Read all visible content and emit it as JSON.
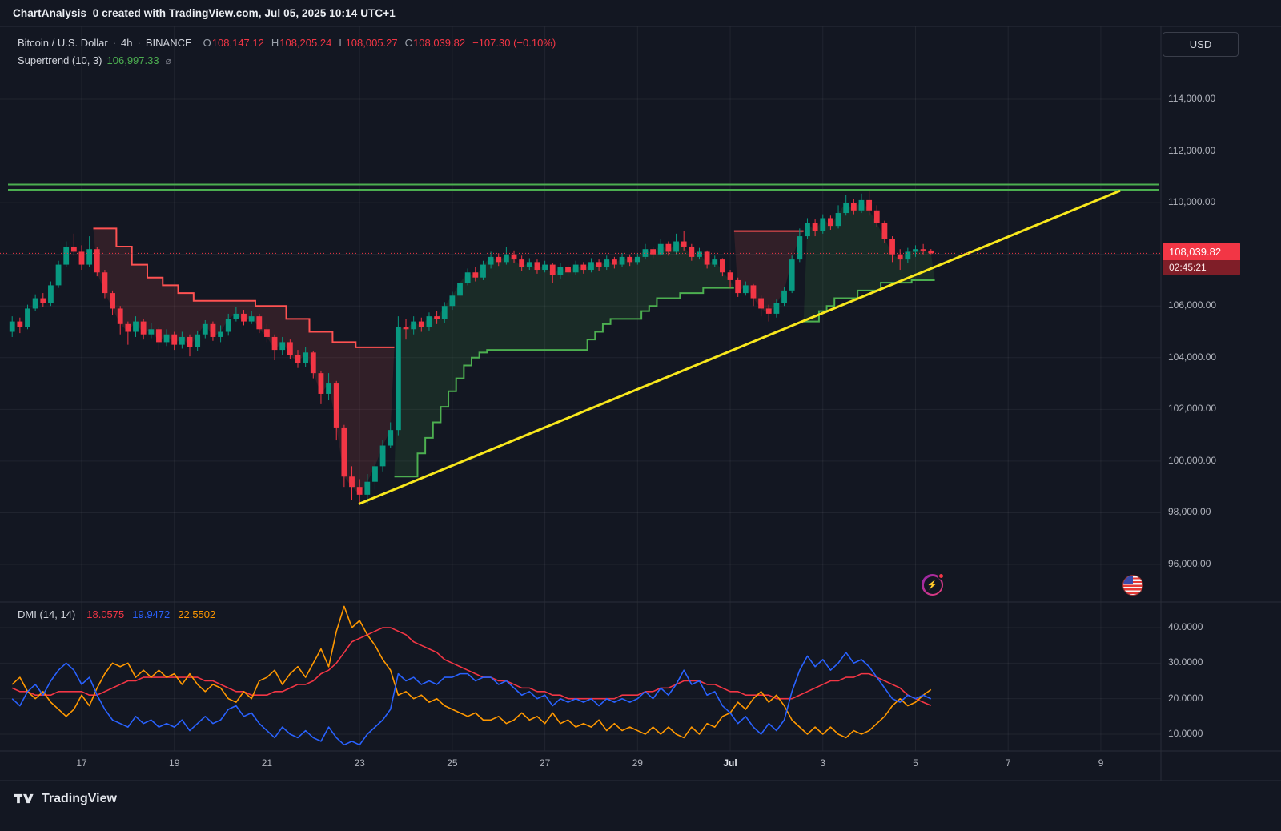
{
  "header": {
    "title": "ChartAnalysis_0 created with TradingView.com, Jul 05, 2025 10:14 UTC+1"
  },
  "legend": {
    "symbol": "Bitcoin / U.S. Dollar",
    "sep": "·",
    "interval": "4h",
    "exchange": "BINANCE",
    "ohlc": {
      "o_label": "O",
      "o": "108,147.12",
      "h_label": "H",
      "h": "108,205.24",
      "l_label": "L",
      "l": "108,005.27",
      "c_label": "C",
      "c": "108,039.82",
      "change": "−107.30 (−0.10%)"
    }
  },
  "supertrend_legend": {
    "title": "Supertrend (10, 3)",
    "value": "106,997.33",
    "icon": "⌀"
  },
  "dmi_legend": {
    "title": "DMI (14, 14)",
    "adx": "18.0575",
    "plus_di": "19.9472",
    "minus_di": "22.5502"
  },
  "price_axis": {
    "currency": "USD",
    "labels": [
      {
        "v": 114000,
        "label": "114,000.00"
      },
      {
        "v": 112000,
        "label": "112,000.00"
      },
      {
        "v": 110000,
        "label": "110,000.00"
      },
      {
        "v": 108000,
        "label": "108,000.00"
      },
      {
        "v": 106000,
        "label": "106,000.00"
      },
      {
        "v": 104000,
        "label": "104,000.00"
      },
      {
        "v": 102000,
        "label": "102,000.00"
      },
      {
        "v": 100000,
        "label": "100,000.00"
      },
      {
        "v": 98000,
        "label": "98,000.00"
      },
      {
        "v": 96000,
        "label": "96,000.00"
      }
    ]
  },
  "dmi_axis": [
    {
      "v": 40,
      "label": "40.0000"
    },
    {
      "v": 30,
      "label": "30.0000"
    },
    {
      "v": 20,
      "label": "20.0000"
    },
    {
      "v": 10,
      "label": "10.0000"
    }
  ],
  "time_axis": [
    {
      "d": 17,
      "label": "17"
    },
    {
      "d": 19,
      "label": "19"
    },
    {
      "d": 21,
      "label": "21"
    },
    {
      "d": 23,
      "label": "23"
    },
    {
      "d": 25,
      "label": "25"
    },
    {
      "d": 27,
      "label": "27"
    },
    {
      "d": 29,
      "label": "29"
    },
    {
      "d": 31,
      "label": "Jul",
      "major": true
    },
    {
      "d": 33,
      "label": "3"
    },
    {
      "d": 35,
      "label": "5"
    },
    {
      "d": 37,
      "label": "7"
    },
    {
      "d": 39,
      "label": "9"
    }
  ],
  "price_badge": {
    "price": "108,039.82",
    "countdown": "02:45:21"
  },
  "icons": {
    "lightning_glyph": "⚡"
  },
  "footer": {
    "brand": "TradingView"
  },
  "chart_data": {
    "type": "candlestick",
    "title": "Bitcoin / U.S. Dollar 4h BINANCE with Supertrend (10,3) and DMI (14,14)",
    "interval": "4h",
    "start_day": 15.5,
    "candles_per_day": 6,
    "first_open": 105000,
    "price_axis_range": [
      96000,
      114000
    ],
    "last_price": 108039.82,
    "resistance_levels": [
      110700,
      110500
    ],
    "trendline": {
      "from_day": 23.0,
      "from_price": 98350,
      "to_day": 39.4,
      "to_price": 110450
    },
    "candles": [
      [
        105600,
        104800,
        105400
      ],
      [
        105550,
        104950,
        105200
      ],
      [
        106050,
        105100,
        105900
      ],
      [
        106450,
        105800,
        106300
      ],
      [
        106500,
        105950,
        106100
      ],
      [
        106950,
        106000,
        106800
      ],
      [
        107750,
        106700,
        107600
      ],
      [
        108500,
        107500,
        108300
      ],
      [
        108800,
        107950,
        108100
      ],
      [
        108350,
        107400,
        107600
      ],
      [
        108700,
        107500,
        108200
      ],
      [
        108300,
        107150,
        107300
      ],
      [
        107400,
        106300,
        106500
      ],
      [
        106600,
        105650,
        105900
      ],
      [
        106000,
        104900,
        105300
      ],
      [
        105400,
        104500,
        105000
      ],
      [
        105600,
        104800,
        105400
      ],
      [
        105500,
        104700,
        104900
      ],
      [
        105350,
        104750,
        105100
      ],
      [
        105200,
        104300,
        104600
      ],
      [
        105100,
        104450,
        104900
      ],
      [
        105000,
        104300,
        104500
      ],
      [
        105000,
        104350,
        104800
      ],
      [
        104900,
        104050,
        104400
      ],
      [
        105050,
        104250,
        104900
      ],
      [
        105450,
        104750,
        105300
      ],
      [
        105400,
        104650,
        104800
      ],
      [
        105250,
        104600,
        105000
      ],
      [
        105700,
        104850,
        105500
      ],
      [
        105950,
        105400,
        105700
      ],
      [
        105850,
        105250,
        105400
      ],
      [
        105800,
        105300,
        105600
      ],
      [
        105700,
        104950,
        105100
      ],
      [
        105300,
        104600,
        104800
      ],
      [
        104900,
        103900,
        104300
      ],
      [
        104800,
        104100,
        104600
      ],
      [
        104700,
        103950,
        104100
      ],
      [
        104300,
        103600,
        103800
      ],
      [
        104400,
        103650,
        104200
      ],
      [
        104250,
        103200,
        103400
      ],
      [
        103500,
        102200,
        102600
      ],
      [
        103400,
        102350,
        103000
      ],
      [
        103100,
        100800,
        101300
      ],
      [
        101400,
        99000,
        99400
      ],
      [
        99800,
        98500,
        99000
      ],
      [
        99300,
        98300,
        98700
      ],
      [
        99500,
        98350,
        99200
      ],
      [
        100000,
        98900,
        99800
      ],
      [
        100800,
        99600,
        100600
      ],
      [
        101500,
        100500,
        101200
      ],
      [
        105600,
        101000,
        105200
      ],
      [
        105500,
        104700,
        105100
      ],
      [
        105600,
        104900,
        105400
      ],
      [
        105550,
        105000,
        105200
      ],
      [
        105750,
        105050,
        105600
      ],
      [
        105800,
        105300,
        105500
      ],
      [
        106150,
        105350,
        106000
      ],
      [
        106550,
        105850,
        106400
      ],
      [
        107050,
        106300,
        106900
      ],
      [
        107450,
        106800,
        107300
      ],
      [
        107500,
        106950,
        107100
      ],
      [
        107750,
        107000,
        107600
      ],
      [
        108100,
        107450,
        107900
      ],
      [
        108050,
        107550,
        107700
      ],
      [
        108300,
        107600,
        108000
      ],
      [
        108150,
        107650,
        107800
      ],
      [
        107950,
        107350,
        107500
      ],
      [
        107850,
        107400,
        107700
      ],
      [
        107800,
        107250,
        107400
      ],
      [
        107750,
        107300,
        107600
      ],
      [
        107650,
        106900,
        107200
      ],
      [
        107650,
        107050,
        107500
      ],
      [
        107600,
        107150,
        107300
      ],
      [
        107750,
        107200,
        107600
      ],
      [
        107700,
        107250,
        107400
      ],
      [
        107850,
        107300,
        107700
      ],
      [
        107800,
        107350,
        107500
      ],
      [
        107950,
        107400,
        107800
      ],
      [
        107900,
        107450,
        107600
      ],
      [
        108050,
        107500,
        107900
      ],
      [
        108000,
        107550,
        107700
      ],
      [
        108050,
        107600,
        107900
      ],
      [
        108400,
        107800,
        108200
      ],
      [
        108300,
        107850,
        108000
      ],
      [
        108600,
        107950,
        108400
      ],
      [
        108500,
        107950,
        108100
      ],
      [
        108800,
        108000,
        108500
      ],
      [
        108900,
        108150,
        108300
      ],
      [
        108400,
        107750,
        107900
      ],
      [
        108250,
        107800,
        108100
      ],
      [
        108150,
        107450,
        107600
      ],
      [
        107950,
        107500,
        107800
      ],
      [
        107850,
        107150,
        107300
      ],
      [
        107400,
        106700,
        107000
      ],
      [
        107100,
        106350,
        106500
      ],
      [
        106950,
        106400,
        106800
      ],
      [
        106850,
        106000,
        106300
      ],
      [
        106400,
        105600,
        105900
      ],
      [
        106050,
        105400,
        105700
      ],
      [
        106250,
        105550,
        106100
      ],
      [
        106750,
        106000,
        106600
      ],
      [
        107950,
        106500,
        107800
      ],
      [
        109000,
        107700,
        108700
      ],
      [
        109400,
        108600,
        109200
      ],
      [
        109350,
        108700,
        108900
      ],
      [
        109550,
        108800,
        109400
      ],
      [
        109500,
        108950,
        109100
      ],
      [
        109900,
        109000,
        109600
      ],
      [
        110300,
        109500,
        110000
      ],
      [
        110150,
        109550,
        109700
      ],
      [
        110350,
        109600,
        110100
      ],
      [
        110530,
        109500,
        109700
      ],
      [
        109900,
        109050,
        109200
      ],
      [
        109300,
        108450,
        108600
      ],
      [
        108700,
        107700,
        108000
      ],
      [
        108200,
        107400,
        107800
      ],
      [
        108250,
        107650,
        108100
      ],
      [
        108350,
        107900,
        108200
      ],
      [
        108400,
        108000,
        108147.12
      ],
      [
        108205.24,
        108005.27,
        108039.82
      ]
    ],
    "supertrend": {
      "params": [
        10,
        3
      ],
      "current_value": 106997.33,
      "segments": [
        {
          "dir": "down",
          "start": 11,
          "end": 49,
          "points": [
            [
              11,
              109000
            ],
            [
              14,
              108300
            ],
            [
              16,
              107600
            ],
            [
              18,
              107100
            ],
            [
              20,
              106800
            ],
            [
              22,
              106500
            ],
            [
              24,
              106200
            ],
            [
              32,
              106000
            ],
            [
              36,
              105500
            ],
            [
              39,
              105000
            ],
            [
              42,
              104600
            ],
            [
              45,
              104400
            ]
          ]
        },
        {
          "dir": "up",
          "start": 50,
          "end": 93,
          "points": [
            [
              50,
              99400
            ],
            [
              53,
              100300
            ],
            [
              54,
              100900
            ],
            [
              55,
              101500
            ],
            [
              56,
              102100
            ],
            [
              57,
              102700
            ],
            [
              58,
              103200
            ],
            [
              59,
              103700
            ],
            [
              60,
              104000
            ],
            [
              61,
              104200
            ],
            [
              62,
              104300
            ],
            [
              75,
              104700
            ],
            [
              76,
              105000
            ],
            [
              77,
              105300
            ],
            [
              78,
              105500
            ],
            [
              82,
              105800
            ],
            [
              83,
              106000
            ],
            [
              84,
              106300
            ],
            [
              87,
              106500
            ],
            [
              90,
              106700
            ]
          ]
        },
        {
          "dir": "down",
          "start": 94,
          "end": 102,
          "points": [
            [
              94,
              108900
            ]
          ]
        },
        {
          "dir": "up",
          "start": 103,
          "end": 119,
          "points": [
            [
              103,
              105400
            ],
            [
              105,
              105800
            ],
            [
              106,
              106000
            ],
            [
              107,
              106300
            ],
            [
              110,
              106600
            ],
            [
              113,
              106900
            ],
            [
              117,
              106997.33
            ]
          ]
        }
      ]
    },
    "dmi": {
      "params": [
        14,
        14
      ],
      "adx": [
        23,
        22,
        22,
        21,
        21,
        21,
        22,
        22,
        22,
        22,
        21,
        21,
        22,
        23,
        24,
        25,
        25,
        26,
        26,
        26,
        26,
        26,
        26,
        26,
        26,
        25,
        25,
        24,
        23,
        22,
        22,
        21,
        21,
        21,
        22,
        22,
        23,
        24,
        24,
        25,
        27,
        28,
        30,
        33,
        36,
        37,
        38,
        39,
        40,
        40,
        39,
        38,
        36,
        35,
        34,
        33,
        31,
        30,
        29,
        28,
        27,
        26,
        26,
        25,
        25,
        24,
        23,
        23,
        22,
        22,
        21,
        21,
        20,
        20,
        20,
        20,
        20,
        20,
        20,
        21,
        21,
        21,
        22,
        22,
        23,
        23,
        24,
        25,
        25,
        25,
        24,
        24,
        23,
        22,
        22,
        21,
        21,
        21,
        21,
        20,
        20,
        20,
        21,
        22,
        23,
        24,
        25,
        25,
        26,
        26,
        27,
        27,
        26,
        25,
        24,
        23,
        21,
        20,
        19,
        18.0575
      ],
      "plus_di": [
        20,
        18,
        22,
        24,
        21,
        25,
        28,
        30,
        28,
        24,
        26,
        21,
        17,
        14,
        13,
        12,
        15,
        13,
        14,
        12,
        13,
        12,
        14,
        11,
        13,
        15,
        13,
        14,
        17,
        18,
        15,
        16,
        13,
        11,
        9,
        12,
        10,
        9,
        11,
        9,
        8,
        12,
        9,
        7,
        8,
        7,
        10,
        12,
        14,
        17,
        27,
        25,
        26,
        24,
        25,
        24,
        26,
        26,
        27,
        27,
        25,
        26,
        26,
        24,
        25,
        23,
        21,
        22,
        20,
        21,
        18,
        20,
        19,
        20,
        19,
        20,
        18,
        20,
        19,
        20,
        19,
        20,
        22,
        20,
        23,
        21,
        24,
        28,
        24,
        25,
        21,
        22,
        18,
        16,
        13,
        15,
        12,
        10,
        13,
        11,
        14,
        22,
        28,
        32,
        29,
        31,
        28,
        30,
        33,
        30,
        31,
        29,
        26,
        23,
        20,
        19,
        21,
        20,
        21,
        19.9472
      ],
      "minus_di": [
        24,
        26,
        22,
        20,
        22,
        19,
        17,
        15,
        17,
        21,
        18,
        23,
        27,
        30,
        29,
        30,
        26,
        28,
        26,
        28,
        26,
        27,
        24,
        27,
        24,
        22,
        24,
        23,
        20,
        19,
        22,
        20,
        25,
        26,
        28,
        24,
        27,
        29,
        26,
        30,
        34,
        29,
        39,
        46,
        40,
        42,
        38,
        35,
        31,
        28,
        21,
        22,
        20,
        21,
        19,
        20,
        18,
        17,
        16,
        15,
        16,
        14,
        14,
        15,
        13,
        14,
        16,
        14,
        15,
        13,
        16,
        13,
        14,
        12,
        13,
        12,
        14,
        11,
        13,
        11,
        12,
        11,
        10,
        12,
        10,
        12,
        10,
        9,
        12,
        10,
        13,
        12,
        15,
        16,
        19,
        17,
        20,
        22,
        19,
        21,
        18,
        14,
        12,
        10,
        12,
        10,
        12,
        10,
        9,
        11,
        10,
        11,
        13,
        15,
        18,
        20,
        18,
        19,
        21,
        22.5502
      ]
    },
    "colors": {
      "up": "#089981",
      "down": "#f23645",
      "st_up": "#4caf50",
      "st_down": "#ff5252",
      "st_up_fill": "rgba(76,175,80,0.13)",
      "st_down_fill": "rgba(255,82,82,0.13)",
      "resistance": "#4caf50",
      "trendline": "#f8e71c",
      "last_price": "#f23645",
      "adx": "#f23645",
      "plus_di": "#2962ff",
      "minus_di": "#ff9800",
      "grid": "rgba(255,255,255,0.06)",
      "separator": "#2a2e39"
    }
  }
}
